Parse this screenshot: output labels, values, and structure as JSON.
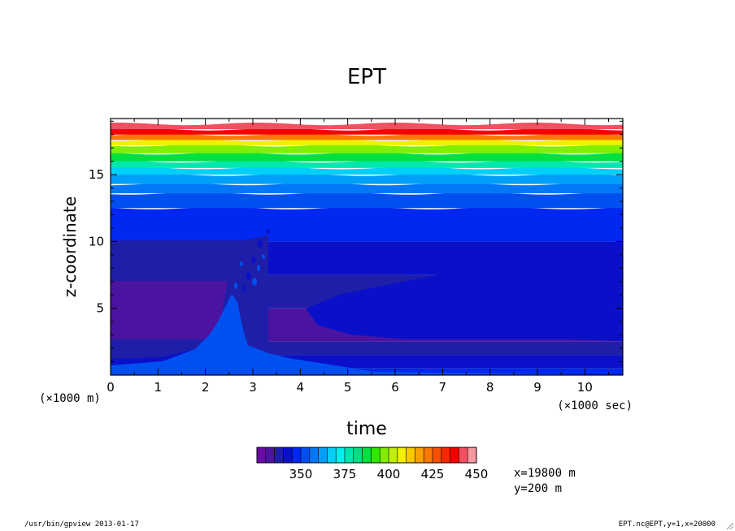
{
  "chart_data": {
    "type": "heatmap",
    "title": "EPT",
    "xlabel": "time",
    "ylabel": "z-coordinate",
    "x_unit": "(×1000 sec)",
    "y_unit": "(×1000 m)",
    "xlim": [
      0,
      10.8
    ],
    "ylim": [
      0,
      19.2
    ],
    "x_ticks": [
      "0",
      "1",
      "2",
      "3",
      "4",
      "5",
      "6",
      "7",
      "8",
      "9",
      "10"
    ],
    "y_ticks": [
      "5",
      "10",
      "15"
    ],
    "colorbar": {
      "levels": [
        330,
        335,
        340,
        345,
        350,
        355,
        360,
        365,
        370,
        375,
        380,
        385,
        390,
        395,
        400,
        405,
        410,
        415,
        420,
        425,
        430,
        435,
        440,
        445,
        450
      ],
      "tick_labels": [
        "350",
        "375",
        "400",
        "425",
        "450"
      ],
      "colors": [
        "#6a0aa8",
        "#4a14a0",
        "#1e1ea8",
        "#0a10c8",
        "#0028f0",
        "#0050f0",
        "#0078f8",
        "#00a0f8",
        "#00d0f8",
        "#00f0f0",
        "#00e8b0",
        "#00e080",
        "#00e040",
        "#30e800",
        "#80f000",
        "#c0f000",
        "#f0f000",
        "#f8c800",
        "#f8a000",
        "#f87800",
        "#f85000",
        "#f82800",
        "#f80000",
        "#f05060",
        "#f898a0"
      ]
    },
    "levels_z": [
      {
        "z": 18.8,
        "value": 447
      },
      {
        "z": 18.4,
        "value": 440
      },
      {
        "z": 18.0,
        "value": 425
      },
      {
        "z": 17.6,
        "value": 410
      },
      {
        "z": 17.2,
        "value": 400
      },
      {
        "z": 16.6,
        "value": 390
      },
      {
        "z": 16.0,
        "value": 380
      },
      {
        "z": 15.5,
        "value": 372
      },
      {
        "z": 15.0,
        "value": 365
      },
      {
        "z": 14.3,
        "value": 360
      },
      {
        "z": 13.6,
        "value": 355
      },
      {
        "z": 12.5,
        "value": 350
      },
      {
        "z": 10.0,
        "value": 347
      },
      {
        "z": 7.5,
        "value": 343
      },
      {
        "z": 5.0,
        "value": 338
      },
      {
        "z": 2.5,
        "value": 342
      },
      {
        "z": 1.5,
        "value": 348
      },
      {
        "z": 0.5,
        "value": 352
      }
    ],
    "annotations": [
      "x=19800  m",
      "y=200  m"
    ]
  },
  "footer": {
    "left": "/usr/bin/gpview  2013-01-17",
    "right": "EPT.nc@EPT,y=1,x=20000"
  }
}
